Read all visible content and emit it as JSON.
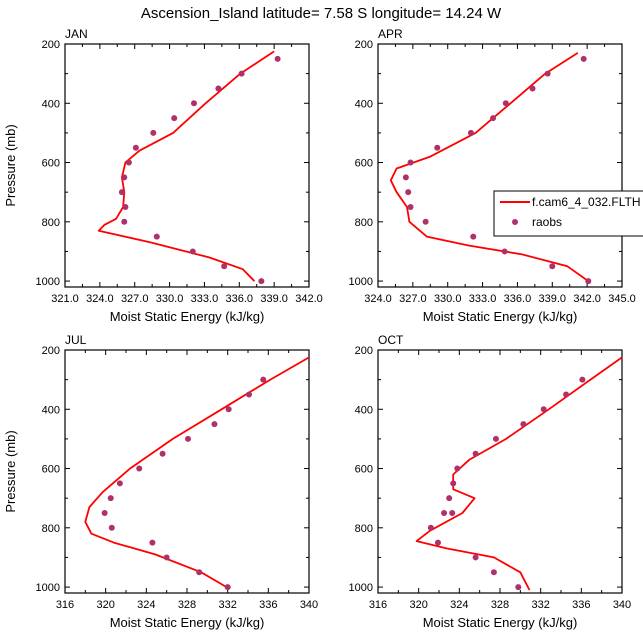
{
  "figure": {
    "title": "Ascension_Island  latitude= 7.58 S longitude= 14.24 W"
  },
  "colors": {
    "model_line": "#ff0000",
    "obs_marker": "#b0306a",
    "axes": "#000000"
  },
  "legend": {
    "model_label": "f.cam6_4_032.FLTH",
    "obs_label": "raobs",
    "placement": "right edge, between APR and JUL panels"
  },
  "chart_data": [
    {
      "type": "line",
      "panel": "JAN",
      "xlabel": "Moist Static Energy (kJ/kg)",
      "ylabel": "Pressure (mb)",
      "xlim": [
        321.0,
        342.0
      ],
      "ylim": [
        1020,
        200
      ],
      "y_inverted": true,
      "xticks": [
        "321.0",
        "324.0",
        "327.0",
        "330.0",
        "333.0",
        "336.0",
        "339.0",
        "342.0"
      ],
      "yticks": [
        "200",
        "400",
        "600",
        "800",
        "1000"
      ],
      "series": [
        {
          "name": "f.cam6_4_032.FLTH",
          "x": [
            339.0,
            336.1,
            333.1,
            330.3,
            327.4,
            326.2,
            325.9,
            326.1,
            326.0,
            325.4,
            324.4,
            323.9,
            328.4,
            333.4,
            336.3,
            337.3
          ],
          "y": [
            225,
            300,
            400,
            500,
            560,
            600,
            650,
            700,
            750,
            790,
            810,
            830,
            870,
            920,
            960,
            1000
          ]
        },
        {
          "name": "raobs",
          "type": "scatter",
          "x": [
            339.3,
            336.2,
            334.2,
            332.1,
            330.4,
            328.6,
            327.1,
            326.5,
            326.1,
            325.9,
            326.2,
            326.1,
            328.9,
            332.0,
            334.7,
            337.9
          ],
          "y": [
            250,
            300,
            350,
            400,
            450,
            500,
            550,
            600,
            650,
            700,
            750,
            800,
            850,
            900,
            950,
            1000
          ]
        }
      ]
    },
    {
      "type": "line",
      "panel": "APR",
      "xlabel": "Moist Static Energy (kJ/kg)",
      "ylabel": "",
      "xlim": [
        324.0,
        345.0
      ],
      "ylim": [
        1020,
        200
      ],
      "y_inverted": true,
      "xticks": [
        "324.0",
        "327.0",
        "330.0",
        "333.0",
        "336.0",
        "339.0",
        "342.0",
        "345.0"
      ],
      "yticks": [
        "200",
        "400",
        "600",
        "800",
        "1000"
      ],
      "series": [
        {
          "name": "f.cam6_4_032.FLTH",
          "x": [
            341.2,
            338.4,
            335.4,
            332.4,
            328.5,
            325.6,
            325.1,
            325.6,
            326.5,
            326.7,
            328.2,
            331.8,
            336.4,
            340.3,
            342.1
          ],
          "y": [
            230,
            300,
            400,
            500,
            580,
            620,
            660,
            700,
            750,
            800,
            850,
            880,
            910,
            950,
            1000
          ]
        },
        {
          "name": "raobs",
          "type": "scatter",
          "x": [
            341.7,
            338.6,
            337.3,
            335.0,
            333.9,
            332.0,
            329.1,
            326.8,
            326.4,
            326.6,
            326.8,
            328.1,
            332.2,
            334.9,
            339.0,
            342.1
          ],
          "y": [
            250,
            300,
            350,
            400,
            450,
            500,
            550,
            600,
            650,
            700,
            750,
            800,
            850,
            900,
            950,
            1000
          ]
        }
      ]
    },
    {
      "type": "line",
      "panel": "JUL",
      "xlabel": "Moist Static Energy (kJ/kg)",
      "ylabel": "Pressure (mb)",
      "xlim": [
        316,
        340
      ],
      "ylim": [
        1020,
        200
      ],
      "y_inverted": true,
      "xticks": [
        "316",
        "320",
        "324",
        "328",
        "332",
        "336",
        "340"
      ],
      "yticks": [
        "200",
        "400",
        "600",
        "800",
        "1000"
      ],
      "series": [
        {
          "name": "f.cam6_4_032.FLTH",
          "x": [
            340.0,
            336.2,
            331.4,
            326.6,
            322.4,
            319.7,
            318.4,
            318.0,
            318.6,
            320.8,
            324.9,
            329.4,
            331.9
          ],
          "y": [
            225,
            300,
            400,
            500,
            600,
            680,
            730,
            780,
            820,
            850,
            890,
            950,
            1000
          ]
        },
        {
          "name": "raobs",
          "type": "scatter",
          "x": [
            335.5,
            334.1,
            332.1,
            330.7,
            328.1,
            325.6,
            323.3,
            321.4,
            320.5,
            319.9,
            320.6,
            324.6,
            326.0,
            329.2,
            332.0
          ],
          "y": [
            300,
            350,
            400,
            450,
            500,
            550,
            600,
            650,
            700,
            750,
            800,
            850,
            900,
            950,
            1000
          ]
        }
      ]
    },
    {
      "type": "line",
      "panel": "OCT",
      "xlabel": "Moist Static Energy (kJ/kg)",
      "ylabel": "",
      "xlim": [
        316,
        340
      ],
      "ylim": [
        1020,
        200
      ],
      "y_inverted": true,
      "xticks": [
        "316",
        "320",
        "324",
        "328",
        "332",
        "336",
        "340"
      ],
      "yticks": [
        "200",
        "400",
        "600",
        "800",
        "1000"
      ],
      "series": [
        {
          "name": "f.cam6_4_032.FLTH",
          "x": [
            340.0,
            336.9,
            332.8,
            328.6,
            325.0,
            323.4,
            323.4,
            325.5,
            324.3,
            321.1,
            319.8,
            322.8,
            327.4,
            330.0,
            330.9
          ],
          "y": [
            225,
            300,
            400,
            500,
            570,
            620,
            670,
            700,
            750,
            810,
            845,
            870,
            900,
            950,
            1010
          ]
        },
        {
          "name": "raobs",
          "type": "scatter",
          "x": [
            336.1,
            334.5,
            332.3,
            330.3,
            327.6,
            325.6,
            323.8,
            323.4,
            323.0,
            323.3,
            322.5,
            321.2,
            321.9,
            325.6,
            327.4,
            329.8
          ],
          "y": [
            300,
            350,
            400,
            450,
            500,
            550,
            600,
            650,
            700,
            750,
            750,
            800,
            850,
            900,
            950,
            1000
          ]
        }
      ]
    }
  ]
}
